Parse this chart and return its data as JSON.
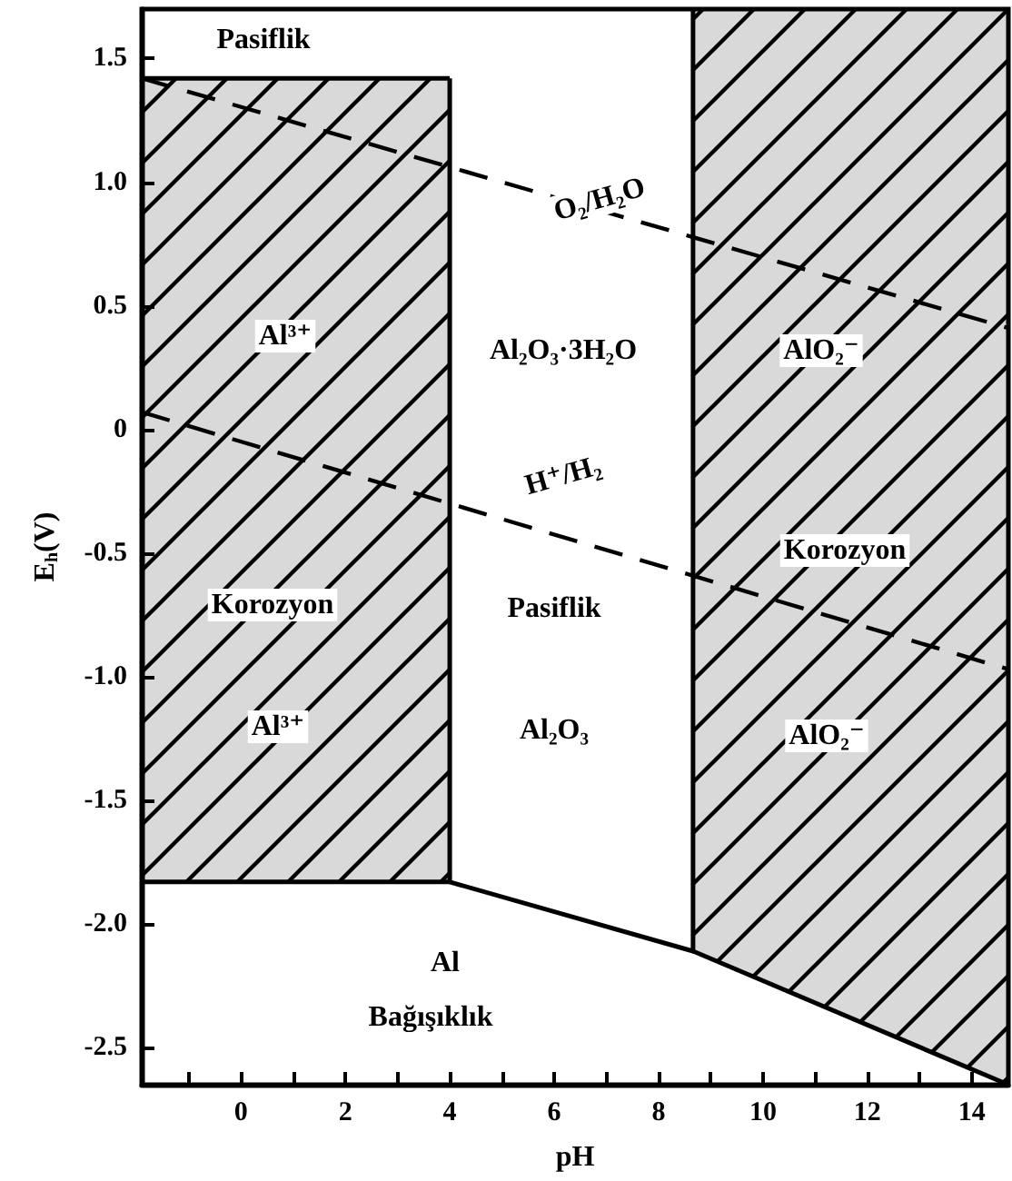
{
  "chart_data": {
    "type": "line",
    "xlabel": "pH",
    "ylabel": "E$_{h}$(V)",
    "xlim": [
      -1.9,
      14.7
    ],
    "ylim": [
      -2.65,
      1.7
    ],
    "xticks": [
      {
        "value": -1,
        "label": null
      },
      0,
      {
        "value": 1,
        "label": null
      },
      2,
      {
        "value": 3,
        "label": null
      },
      4,
      {
        "value": 5,
        "label": null
      },
      6,
      {
        "value": 7,
        "label": null
      },
      8,
      {
        "value": 9,
        "label": null
      },
      10,
      {
        "value": 11,
        "label": null
      },
      12,
      {
        "value": 13,
        "label": null
      },
      14
    ],
    "yticks": [
      -2.5,
      {
        "value": -2,
        "label": "-2.0"
      },
      -1.5,
      {
        "value": -1,
        "label": "-1.0"
      },
      -0.5,
      0,
      0.5,
      {
        "value": 1,
        "label": "1.0"
      },
      1.5
    ],
    "series": [
      {
        "color": "#000000",
        "line_style": "solid",
        "x": [
          -1.9,
          4
        ],
        "values": [
          1.42,
          1.42
        ],
        "lower": [
          -1.83,
          -1.83
        ],
        "upper": [
          1.42,
          1.42
        ]
      },
      {
        "color": "#000000",
        "line_style": "solid",
        "x": [
          8.66,
          14.7
        ],
        "values": [
          -2.11,
          -2.65
        ],
        "lower": [
          -2.11,
          -2.65
        ],
        "upper": [
          1.7,
          1.7
        ]
      },
      {
        "color": "#000000",
        "line_style": "solid",
        "x": [
          -1.9,
          4,
          4
        ],
        "values": [
          -1.83,
          -1.83,
          1.42
        ]
      },
      {
        "color": "#000000",
        "line_style": "solid",
        "x": [
          4,
          8.66,
          8.66
        ],
        "values": [
          -1.83,
          -2.11,
          1.7
        ]
      },
      {
        "color": "#000000",
        "line_style": "dashed",
        "x": [
          -1.9,
          14.7
        ],
        "values": [
          1.42,
          0.41
        ]
      },
      {
        "color": "#000000",
        "line_style": "dashed",
        "x": [
          -1.9,
          14.7
        ],
        "values": [
          0.07,
          -0.97
        ]
      }
    ],
    "annotations": [
      "Pasiflik",
      "Al³⁺",
      "Korozyon",
      "Al³⁺",
      "O₂/H₂O",
      "Al₂O₃·3H₂O",
      "H⁺/H₂",
      "Pasiflik",
      "Al₂O₃",
      "AlO₂⁻",
      "Korozyon",
      "AlO₂⁻",
      "Al",
      "Bağışıklık"
    ]
  }
}
